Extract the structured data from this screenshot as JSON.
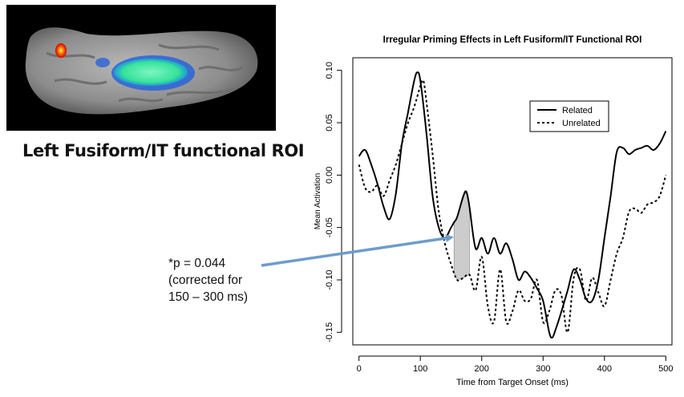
{
  "brain_image": {
    "label": "Left Fusiform/IT functional ROI"
  },
  "annotation": {
    "lines": [
      "*p = 0.044",
      "(corrected for",
      "150 – 300 ms)"
    ],
    "arrow_color": "#6d9ccc"
  },
  "chart_data": {
    "type": "line",
    "title": "Irregular Priming Effects in Left Fusiform/IT Functional ROI",
    "xlabel": "Time from Target Onset (ms)",
    "ylabel": "Mean Activation",
    "xlim": [
      -10,
      510
    ],
    "ylim": [
      -0.162,
      0.112
    ],
    "xticks": [
      0,
      100,
      200,
      300,
      400,
      500
    ],
    "xtick_labels": [
      "0",
      "100",
      "200",
      "300",
      "400",
      "500"
    ],
    "yticks": [
      -0.15,
      -0.1,
      -0.05,
      0.0,
      0.05,
      0.1
    ],
    "ytick_labels": [
      "-0.15",
      "-0.10",
      "-0.05",
      "0.00",
      "0.05",
      "0.10"
    ],
    "grid": false,
    "legend": {
      "placement": "top-right",
      "entries": [
        "Related",
        "Unrelated"
      ]
    },
    "shaded_region": {
      "x": [
        155,
        180
      ],
      "fill": "#cccccc"
    },
    "series": [
      {
        "name": "Related",
        "style": "solid",
        "x": [
          0,
          10,
          20,
          30,
          40,
          50,
          60,
          70,
          80,
          90,
          95,
          100,
          110,
          120,
          130,
          140,
          150,
          155,
          160,
          170,
          175,
          180,
          190,
          200,
          210,
          220,
          230,
          240,
          250,
          260,
          270,
          280,
          290,
          300,
          310,
          315,
          320,
          330,
          340,
          350,
          360,
          370,
          380,
          390,
          400,
          410,
          420,
          430,
          440,
          450,
          460,
          470,
          480,
          490,
          500
        ],
        "y": [
          0.018,
          0.024,
          0.01,
          -0.008,
          -0.03,
          -0.042,
          -0.018,
          0.03,
          0.06,
          0.09,
          0.098,
          0.09,
          0.04,
          -0.02,
          -0.05,
          -0.06,
          -0.05,
          -0.045,
          -0.04,
          -0.02,
          -0.016,
          -0.03,
          -0.07,
          -0.06,
          -0.075,
          -0.06,
          -0.075,
          -0.065,
          -0.08,
          -0.1,
          -0.092,
          -0.098,
          -0.108,
          -0.12,
          -0.15,
          -0.155,
          -0.148,
          -0.13,
          -0.11,
          -0.09,
          -0.1,
          -0.118,
          -0.12,
          -0.1,
          -0.06,
          -0.02,
          0.022,
          0.026,
          0.02,
          0.024,
          0.026,
          0.028,
          0.024,
          0.03,
          0.042
        ]
      },
      {
        "name": "Unrelated",
        "style": "dashed",
        "x": [
          0,
          10,
          20,
          30,
          40,
          50,
          60,
          70,
          80,
          90,
          100,
          105,
          110,
          120,
          130,
          140,
          150,
          160,
          170,
          180,
          190,
          200,
          210,
          220,
          230,
          240,
          250,
          260,
          270,
          280,
          290,
          300,
          310,
          320,
          330,
          340,
          350,
          360,
          370,
          380,
          390,
          400,
          410,
          420,
          430,
          440,
          450,
          460,
          470,
          480,
          490,
          500
        ],
        "y": [
          0.01,
          -0.012,
          -0.016,
          -0.01,
          -0.02,
          -0.005,
          0.01,
          0.03,
          0.05,
          0.065,
          0.085,
          0.09,
          0.07,
          0.02,
          -0.035,
          -0.065,
          -0.085,
          -0.1,
          -0.098,
          -0.095,
          -0.11,
          -0.078,
          -0.125,
          -0.14,
          -0.09,
          -0.14,
          -0.13,
          -0.11,
          -0.12,
          -0.118,
          -0.1,
          -0.14,
          -0.13,
          -0.11,
          -0.115,
          -0.15,
          -0.098,
          -0.09,
          -0.12,
          -0.098,
          -0.112,
          -0.125,
          -0.1,
          -0.075,
          -0.06,
          -0.035,
          -0.032,
          -0.036,
          -0.028,
          -0.026,
          -0.02,
          0.0
        ]
      }
    ]
  }
}
